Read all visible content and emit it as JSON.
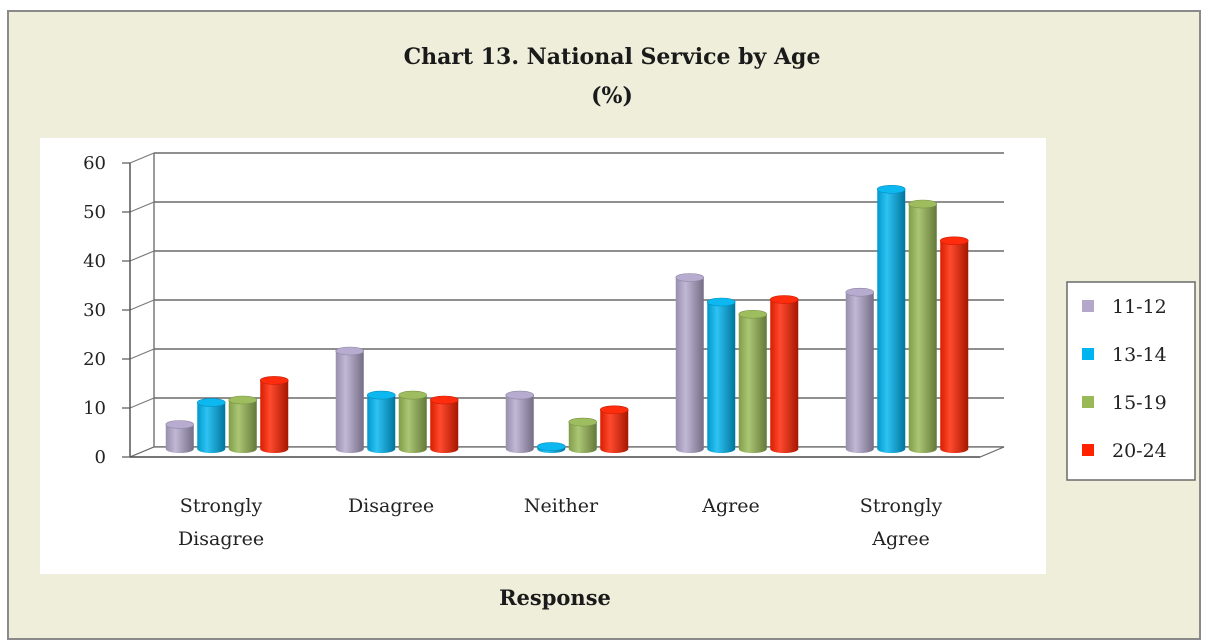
{
  "chart_data": {
    "type": "bar",
    "title": "Chart 13. National Service by Age",
    "subtitle": "(%)",
    "xlabel": "Response",
    "ylabel": "",
    "ylim": [
      0,
      60
    ],
    "yticks": [
      "0",
      "10",
      "20",
      "30",
      "40",
      "50",
      "60"
    ],
    "categories": [
      "Strongly Disagree",
      "Disagree",
      "Neither",
      "Agree",
      "Strongly Agree"
    ],
    "category_lines": [
      [
        "Strongly",
        "Disagree"
      ],
      [
        "Disagree"
      ],
      [
        "Neither"
      ],
      [
        "Agree"
      ],
      [
        "Strongly",
        "Agree"
      ]
    ],
    "series": [
      {
        "name": "11-12",
        "color": "#b3a8cc",
        "values": [
          5,
          20,
          11,
          35,
          32
        ]
      },
      {
        "name": "13-14",
        "color": "#00b4f0",
        "values": [
          9.5,
          11,
          0.5,
          30,
          53
        ]
      },
      {
        "name": "15-19",
        "color": "#98b956",
        "values": [
          10,
          11,
          5.5,
          27.5,
          50
        ]
      },
      {
        "name": "20-24",
        "color": "#ff2200",
        "values": [
          14,
          10,
          8,
          30.5,
          42.5
        ]
      }
    ],
    "grid": true,
    "legend_position": "right"
  }
}
